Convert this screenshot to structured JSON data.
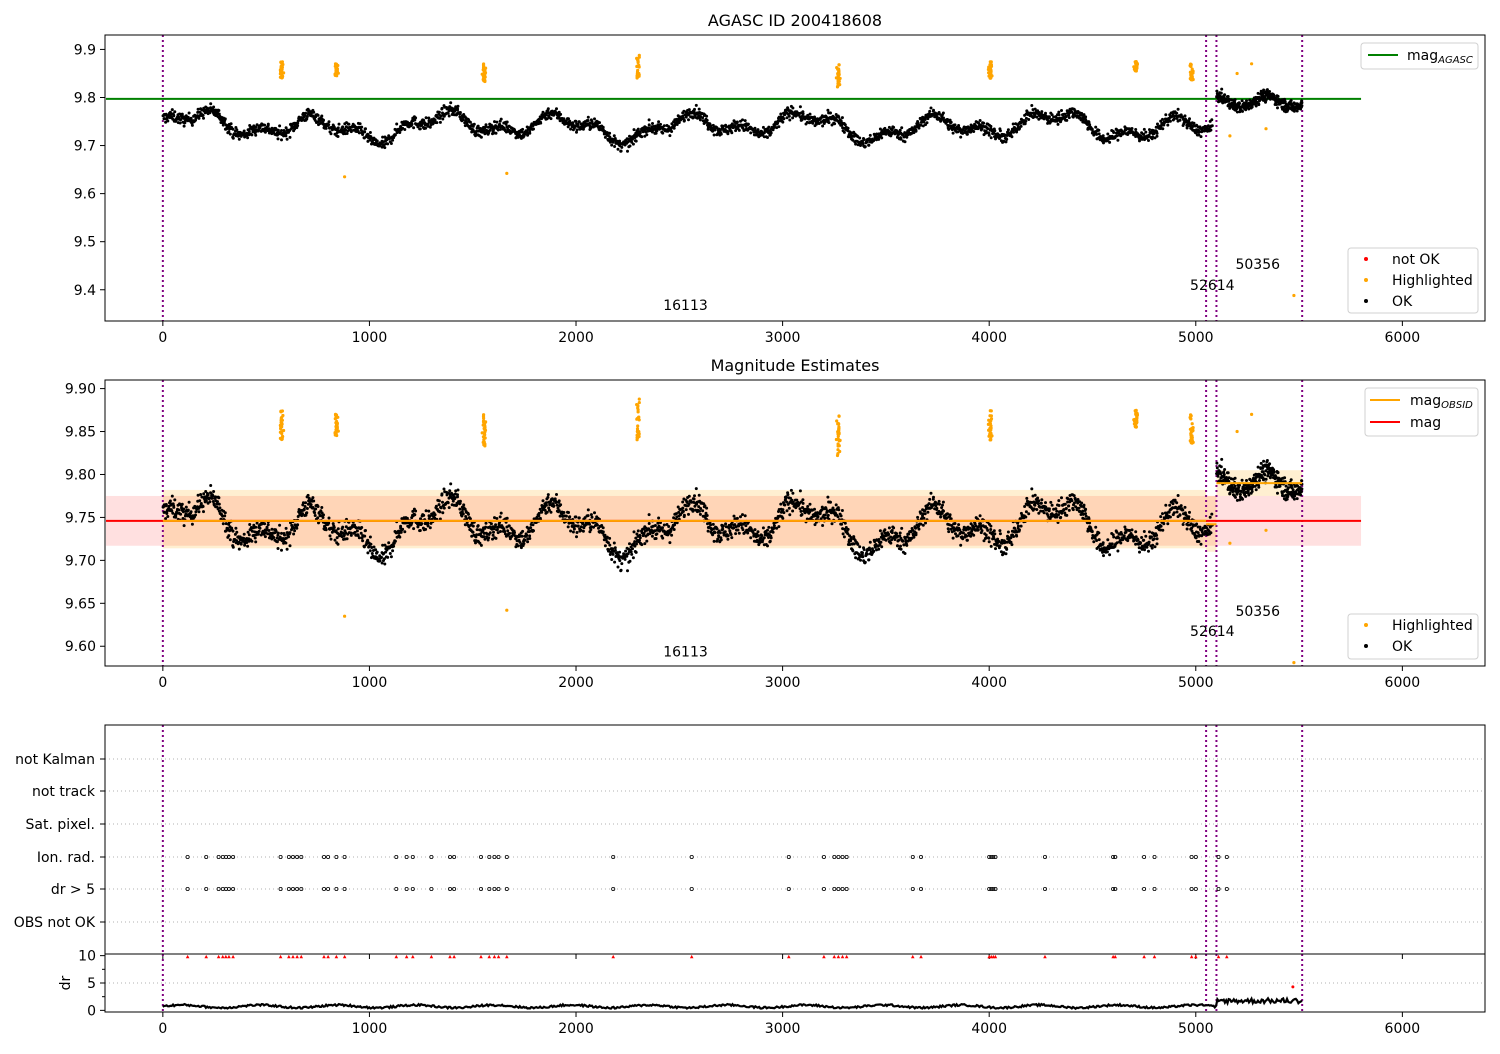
{
  "chart_data": [
    {
      "type": "scatter",
      "title": "AGASC ID 200418608",
      "xlim": [
        -280,
        6400
      ],
      "ylim": [
        9.335,
        9.93
      ],
      "x_ticks": [
        0,
        1000,
        2000,
        3000,
        4000,
        5000,
        6000
      ],
      "y_ticks": [
        9.4,
        9.5,
        9.6,
        9.7,
        9.8,
        9.9
      ],
      "legend": {
        "lines": [
          {
            "label": "mag",
            "sub": "AGASC",
            "color": "#008000"
          }
        ],
        "markers": [
          {
            "label": "not OK",
            "color": "#ff0000"
          },
          {
            "label": "Highlighted",
            "color": "#ffa500"
          },
          {
            "label": "OK",
            "color": "#000000"
          }
        ]
      },
      "series_line": {
        "name": "mag_AGASC",
        "y": 9.797,
        "x": [
          -280,
          5800
        ],
        "color": "#008000"
      },
      "obsid_lines": [
        0,
        5050,
        5100,
        5515
      ],
      "annotations": [
        {
          "text": "16113",
          "x": 2530,
          "y": 9.358
        },
        {
          "text": "52614",
          "x": 5080,
          "y": 9.4
        },
        {
          "text": "50356",
          "x": 5300,
          "y": 9.443
        }
      ],
      "ok_segments": [
        {
          "x": [
            0,
            5080
          ],
          "base": 9.74,
          "amp": 0.035,
          "noise": 0.012
        },
        {
          "x": [
            5100,
            5515
          ],
          "base": 9.792,
          "amp": 0.012,
          "noise": 0.012
        }
      ],
      "highlight_clusters": [
        {
          "x": 575,
          "y": [
            9.84,
            9.875
          ]
        },
        {
          "x": 840,
          "y": [
            9.845,
            9.87
          ]
        },
        {
          "x": 1555,
          "y": [
            9.83,
            9.87
          ]
        },
        {
          "x": 2300,
          "y": [
            9.84,
            9.888
          ]
        },
        {
          "x": 3270,
          "y": [
            9.82,
            9.872
          ]
        },
        {
          "x": 4005,
          "y": [
            9.84,
            9.875
          ]
        },
        {
          "x": 4710,
          "y": [
            9.855,
            9.875
          ]
        },
        {
          "x": 4980,
          "y": [
            9.835,
            9.87
          ]
        }
      ],
      "highlight_points": [
        {
          "x": 880,
          "y": 9.635
        },
        {
          "x": 1665,
          "y": 9.642
        },
        {
          "x": 5165,
          "y": 9.72
        },
        {
          "x": 5200,
          "y": 9.85
        },
        {
          "x": 5270,
          "y": 9.87
        },
        {
          "x": 5340,
          "y": 9.735
        },
        {
          "x": 5475,
          "y": 9.388
        }
      ]
    },
    {
      "type": "scatter",
      "title": "Magnitude Estimates",
      "xlim": [
        -280,
        6400
      ],
      "ylim": [
        9.577,
        9.91
      ],
      "x_ticks": [
        0,
        1000,
        2000,
        3000,
        4000,
        5000,
        6000
      ],
      "y_ticks": [
        9.6,
        9.65,
        9.7,
        9.75,
        9.8,
        9.85,
        9.9
      ],
      "y_tick_labels": [
        "9.60",
        "9.65",
        "9.70",
        "9.75",
        "9.80",
        "9.85",
        "9.90"
      ],
      "legend": {
        "lines": [
          {
            "label": "mag",
            "sub": "OBSID",
            "color": "#ffa500"
          },
          {
            "label": "mag",
            "sub": "",
            "color": "#ff0000"
          }
        ],
        "markers": [
          {
            "label": "Highlighted",
            "color": "#ffa500"
          },
          {
            "label": "OK",
            "color": "#000000"
          }
        ]
      },
      "mag_line": {
        "y": 9.746,
        "x": [
          -280,
          5800
        ],
        "band": [
          9.717,
          9.775
        ],
        "color": "#ff0000"
      },
      "obsid_mags": [
        {
          "x": [
            0,
            5050
          ],
          "y": 9.746,
          "band": [
            9.714,
            9.782
          ]
        },
        {
          "x": [
            5050,
            5100
          ],
          "y": 9.742,
          "band": [
            9.71,
            9.775
          ]
        },
        {
          "x": [
            5100,
            5515
          ],
          "y": 9.79,
          "band": [
            9.775,
            9.805
          ]
        }
      ],
      "obsid_lines": [
        0,
        5050,
        5100,
        5515
      ],
      "annotations": [
        {
          "text": "16113",
          "x": 2530,
          "y": 9.588
        },
        {
          "text": "52614",
          "x": 5080,
          "y": 9.612
        },
        {
          "text": "50356",
          "x": 5300,
          "y": 9.635
        }
      ],
      "highlight_points": [
        {
          "x": 880,
          "y": 9.635
        },
        {
          "x": 1665,
          "y": 9.642
        },
        {
          "x": 5165,
          "y": 9.72
        },
        {
          "x": 5200,
          "y": 9.85
        },
        {
          "x": 5270,
          "y": 9.87
        },
        {
          "x": 5340,
          "y": 9.735
        },
        {
          "x": 5475,
          "y": 9.582
        },
        {
          "x": 5485,
          "y": 9.58
        }
      ]
    },
    {
      "type": "scatter",
      "title": "",
      "xlim": [
        -280,
        6400
      ],
      "categories": [
        "not Kalman",
        "not track",
        "Sat. pixel.",
        "Ion. rad.",
        "dr > 5",
        "OBS not OK"
      ],
      "flagged_times": [
        120,
        210,
        270,
        290,
        305,
        320,
        340,
        570,
        610,
        630,
        650,
        670,
        780,
        800,
        840,
        880,
        1130,
        1180,
        1210,
        1300,
        1390,
        1410,
        1540,
        1580,
        1605,
        1625,
        1665,
        2180,
        2560,
        3030,
        3200,
        3250,
        3270,
        3290,
        3310,
        3630,
        3670,
        4000,
        4010,
        4020,
        4030,
        4270,
        4600,
        4610,
        4750,
        4800,
        4980,
        5000,
        5110,
        5150
      ],
      "obsid_lines": [
        0,
        5050,
        5100,
        5515
      ]
    },
    {
      "type": "line",
      "title": "",
      "ylabel": "dr",
      "xlim": [
        -280,
        6400
      ],
      "ylim": [
        -0.3,
        10.3
      ],
      "x_ticks": [
        0,
        1000,
        2000,
        3000,
        4000,
        5000,
        6000
      ],
      "y_ticks": [
        0,
        5,
        10
      ],
      "capped_value": 10,
      "obsid_lines": [
        0,
        5050,
        5100,
        5515
      ],
      "outliers": [
        {
          "x": 5470,
          "y": 4.3
        }
      ]
    }
  ]
}
